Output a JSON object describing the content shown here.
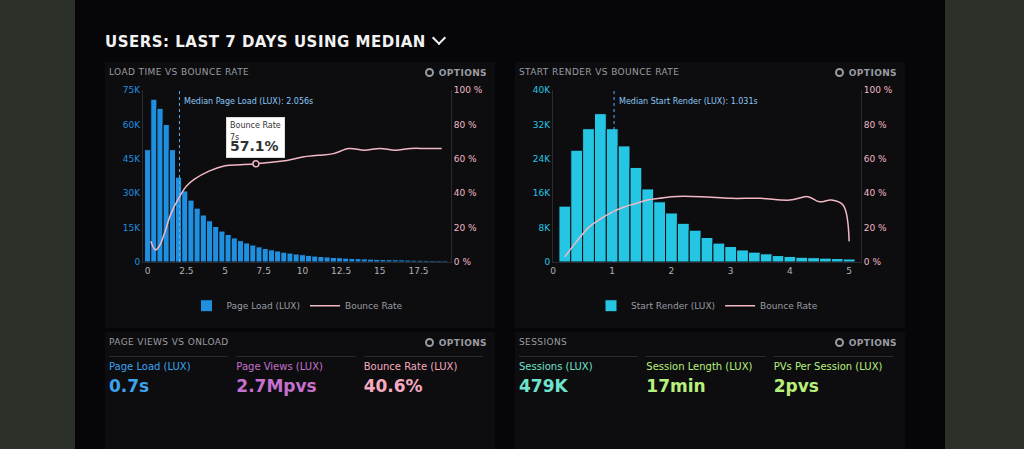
{
  "header": {
    "title": "USERS: LAST 7 DAYS USING MEDIAN",
    "options_label": "OPTIONS"
  },
  "chart_data": [
    {
      "type": "histogram",
      "title": "LOAD TIME VS BOUNCE RATE",
      "bins": [
        -0.2,
        0.2,
        0.6,
        1,
        1.4,
        1.8,
        2.2,
        2.6,
        3,
        3.4,
        3.8,
        4.2,
        4.6,
        5,
        5.4,
        5.8,
        6.2,
        6.6,
        7,
        7.4,
        7.8,
        8.2,
        8.6,
        9,
        9.4,
        9.8,
        10.2,
        10.6,
        11,
        11.4,
        11.8,
        12.2,
        12.6,
        13,
        13.4,
        13.8,
        14.2,
        14.6,
        15,
        15.4,
        15.8,
        16.2,
        16.6,
        17,
        17.4,
        17.8,
        18.2,
        18.6,
        19,
        19.4
      ],
      "series": [
        {
          "name": "Page Load (LUX)",
          "type": "bar",
          "color": "#1f8fe0",
          "values": [
            49000,
            71000,
            67000,
            60000,
            49000,
            37000,
            31000,
            27000,
            23500,
            20500,
            18000,
            15500,
            13500,
            12000,
            10500,
            9300,
            8300,
            7400,
            6600,
            5900,
            5300,
            4800,
            4300,
            3900,
            3500,
            3200,
            2900,
            2600,
            2400,
            2200,
            2000,
            1850,
            1700,
            1550,
            1450,
            1350,
            1250,
            1150,
            1050,
            1000,
            950,
            900,
            850,
            800,
            750,
            700,
            650,
            600,
            550
          ]
        },
        {
          "name": "Bounce Rate",
          "type": "line",
          "axis": "y2",
          "color": "#f2b8c6",
          "x": [
            0.2,
            0.5,
            0.8,
            1.1,
            1.5,
            2,
            2.5,
            3,
            4,
            5,
            6,
            7,
            8,
            9,
            10,
            11,
            12,
            13,
            14,
            15,
            16,
            17,
            18,
            19
          ],
          "values": [
            12,
            7,
            10,
            17,
            28,
            37,
            44,
            48,
            53,
            56,
            56.5,
            57.1,
            58,
            59,
            61,
            62,
            63,
            66,
            65,
            66,
            65,
            66,
            66,
            66
          ]
        }
      ],
      "xlim": [
        -0.3,
        19.6
      ],
      "xticks": [
        0,
        2.5,
        5,
        7.5,
        10,
        12.5,
        15,
        17.5
      ],
      "ylim": [
        0,
        75000
      ],
      "yticks": [
        0,
        {
          "value": 15000,
          "label": "15K"
        },
        {
          "value": 30000,
          "label": "30K"
        },
        {
          "value": 45000,
          "label": "45K"
        },
        {
          "value": 60000,
          "label": "60K"
        },
        {
          "value": 75000,
          "label": "75K"
        }
      ],
      "y2lim": [
        0,
        100
      ],
      "y2ticks": [
        {
          "value": 0,
          "label": "0 %"
        },
        {
          "value": 20,
          "label": "20 %"
        },
        {
          "value": 40,
          "label": "40 %"
        },
        {
          "value": 60,
          "label": "60 %"
        },
        {
          "value": 80,
          "label": "80 %"
        },
        {
          "value": 100,
          "label": "100 %"
        }
      ],
      "median": {
        "x": 2.056,
        "label": "Median Page Load (LUX): 2.056s"
      },
      "callout": {
        "x": 7,
        "y": 57.1,
        "lines": [
          "Bounce Rate",
          "7s",
          "57.1%"
        ]
      },
      "grid": false,
      "legend": "bottom"
    },
    {
      "type": "histogram",
      "title": "START RENDER VS BOUNCE RATE",
      "bins": [
        0.1,
        0.3,
        0.5,
        0.7,
        0.9,
        1.1,
        1.3,
        1.5,
        1.7,
        1.9,
        2.1,
        2.3,
        2.5,
        2.7,
        2.9,
        3.1,
        3.3,
        3.5,
        3.7,
        3.9,
        4.1,
        4.3,
        4.5,
        4.7,
        4.9,
        5.1
      ],
      "series": [
        {
          "name": "Start Render (LUX)",
          "type": "bar",
          "color": "#25c6e3",
          "values": [
            13000,
            26000,
            31000,
            34500,
            31000,
            27000,
            22000,
            17000,
            14000,
            11400,
            9000,
            7400,
            5700,
            4400,
            3600,
            2800,
            2300,
            1900,
            1500,
            1300,
            1100,
            1000,
            900,
            800,
            700
          ]
        },
        {
          "name": "Bounce Rate",
          "type": "line",
          "axis": "y2",
          "color": "#f2b8c6",
          "x": [
            0.2,
            0.4,
            0.6,
            0.8,
            1,
            1.2,
            1.4,
            1.6,
            1.8,
            2,
            2.5,
            3,
            3.5,
            4,
            4.3,
            4.5,
            4.7,
            4.9,
            5
          ],
          "values": [
            3,
            12,
            20,
            25,
            29,
            32,
            34,
            36,
            37,
            38,
            38,
            37,
            37,
            36,
            38,
            35,
            36,
            33,
            12
          ]
        }
      ],
      "xlim": [
        0,
        5.2
      ],
      "xticks": [
        0,
        1,
        2,
        3,
        4,
        5
      ],
      "ylim": [
        0,
        40000
      ],
      "yticks": [
        0,
        {
          "value": 8000,
          "label": "8K"
        },
        {
          "value": 16000,
          "label": "16K"
        },
        {
          "value": 24000,
          "label": "24K"
        },
        {
          "value": 32000,
          "label": "32K"
        },
        {
          "value": 40000,
          "label": "40K"
        }
      ],
      "y2lim": [
        0,
        100
      ],
      "y2ticks": [
        {
          "value": 0,
          "label": "0 %"
        },
        {
          "value": 20,
          "label": "20 %"
        },
        {
          "value": 40,
          "label": "40 %"
        },
        {
          "value": 60,
          "label": "60 %"
        },
        {
          "value": 80,
          "label": "80 %"
        },
        {
          "value": 100,
          "label": "100 %"
        }
      ],
      "median": {
        "x": 1.031,
        "label": "Median Start Render (LUX): 1.031s"
      },
      "grid": false,
      "legend": "bottom"
    }
  ],
  "stats_panels": [
    {
      "title": "PAGE VIEWS VS ONLOAD",
      "stats": [
        {
          "label": "Page Load (LUX)",
          "value": "0.7s",
          "color": "#3ba3f0"
        },
        {
          "label": "Page Views (LUX)",
          "value": "2.7Mpvs",
          "color": "#c670d0"
        },
        {
          "label": "Bounce Rate (LUX)",
          "value": "40.6%",
          "color": "#f6a9bf"
        }
      ]
    },
    {
      "title": "SESSIONS",
      "stats": [
        {
          "label": "Sessions (LUX)",
          "value": "479K",
          "color": "#6fe3cc"
        },
        {
          "label": "Session Length (LUX)",
          "value": "17min",
          "color": "#b8f07c"
        },
        {
          "label": "PVs Per Session (LUX)",
          "value": "2pvs",
          "color": "#b8f07c"
        }
      ]
    }
  ]
}
